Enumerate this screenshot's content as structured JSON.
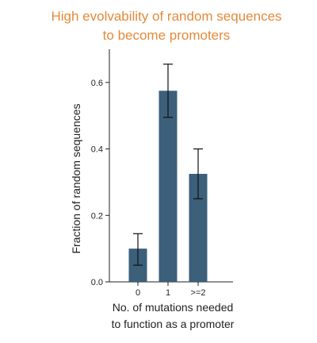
{
  "chart_data": {
    "type": "bar",
    "title_lines": [
      "High evolvability of random sequences",
      "to become promoters"
    ],
    "xlabel_lines": [
      "No. of mutations needed",
      "to function as a promoter"
    ],
    "ylabel": "Fraction of random sequences",
    "categories": [
      "0",
      "1",
      ">=2"
    ],
    "values": [
      0.1,
      0.575,
      0.325
    ],
    "error_low": [
      0.05,
      0.495,
      0.25
    ],
    "error_high": [
      0.145,
      0.655,
      0.4
    ],
    "ylim": [
      0,
      0.7
    ],
    "yticks": [
      0.0,
      0.2,
      0.4,
      0.6
    ],
    "ytick_labels": [
      "0.0",
      "0.2",
      "0.4",
      "0.6"
    ],
    "grid": false,
    "colors": {
      "bar": "#3c5f7a",
      "title": "#e58a3a",
      "axis": "#222222"
    }
  }
}
